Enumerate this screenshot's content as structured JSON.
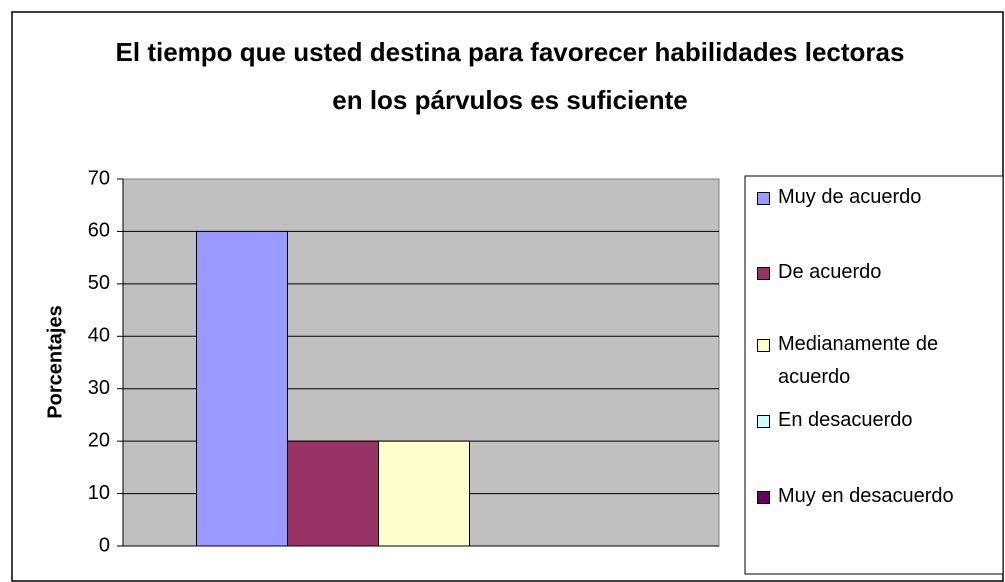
{
  "chart_data": {
    "type": "bar",
    "title": "El tiempo que usted destina para favorecer habilidades lectoras en los párvulos es suficiente",
    "y_label": "Porcentajes",
    "categories": [
      null
    ],
    "series": [
      {
        "name": "Muy de acuerdo",
        "color": "#9999ff",
        "values": [
          60
        ]
      },
      {
        "name": "De acuerdo",
        "color": "#993366",
        "values": [
          20
        ]
      },
      {
        "name": "Medianamente de acuerdo",
        "color": "#ffffcc",
        "values": [
          20
        ]
      },
      {
        "name": "En desacuerdo",
        "color": "#ccffff",
        "values": [
          0
        ]
      },
      {
        "name": "Muy en desacuerdo",
        "color": "#660066",
        "values": [
          0
        ]
      }
    ],
    "ylim": [
      0,
      70
    ],
    "yticks": [
      0,
      10,
      20,
      30,
      40,
      50,
      60,
      70
    ],
    "grid": true,
    "legend": "right",
    "plot_color": "#c0c0c0"
  }
}
